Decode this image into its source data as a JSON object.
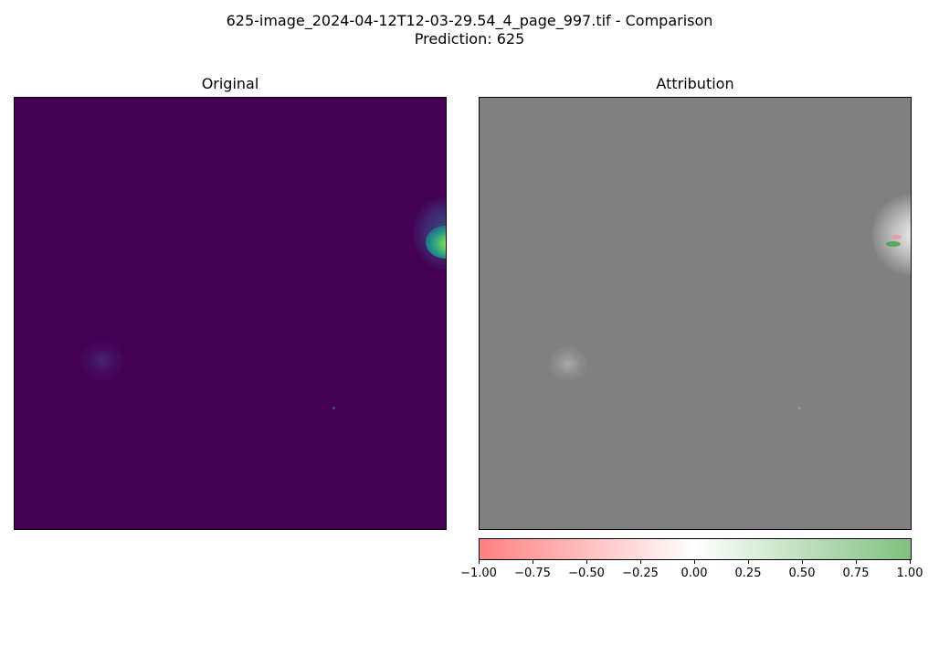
{
  "figure": {
    "title_line1": "625-image_2024-04-12T12-03-29.54_4_page_997.tif - Comparison",
    "title_line2": "Prediction: 625"
  },
  "panels": {
    "original": {
      "title": "Original",
      "background": "#440154"
    },
    "attribution": {
      "title": "Attribution",
      "background": "#808080"
    }
  },
  "colorbar": {
    "min": -1.0,
    "max": 1.0,
    "colors": {
      "negative": "#ff8080",
      "zero": "#ffffff",
      "positive": "#80c080"
    },
    "ticks": [
      "−1.00",
      "−0.75",
      "−0.50",
      "−0.25",
      "0.00",
      "0.25",
      "0.50",
      "0.75",
      "1.00"
    ]
  }
}
